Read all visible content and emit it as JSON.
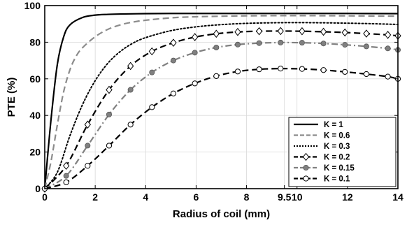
{
  "chart_data": {
    "type": "line",
    "xlabel": "Radius of coil (mm)",
    "ylabel": "PTE (%)",
    "xlim": [
      0,
      14
    ],
    "ylim": [
      0,
      100
    ],
    "xticks": [
      0,
      2,
      4,
      6,
      8,
      9.5,
      10,
      12,
      14
    ],
    "xtick_labels": [
      "0",
      "2",
      "4",
      "6",
      "8",
      "9.5",
      "10",
      "12",
      "14"
    ],
    "yticks": [
      0,
      20,
      40,
      60,
      80,
      100
    ],
    "ytick_labels": [
      "0",
      "20",
      "40",
      "60",
      "80",
      "100"
    ],
    "grid": true,
    "legend_position": "bottom-right",
    "x_markers": [
      0,
      0.85,
      1.7,
      2.55,
      3.4,
      4.25,
      5.1,
      5.95,
      6.8,
      7.65,
      8.5,
      9.35,
      10.2,
      11.05,
      11.9,
      12.75,
      13.6,
      14
    ],
    "series": [
      {
        "name": "K = 1",
        "color": "#000000",
        "dash": "solid",
        "marker": "none",
        "x": [
          0,
          0.25,
          0.5,
          0.75,
          1,
          1.5,
          2,
          2.5,
          3,
          4,
          5,
          6,
          8,
          10,
          12,
          14
        ],
        "y": [
          0,
          38,
          68,
          83,
          89.5,
          93.5,
          94.8,
          95.2,
          95.4,
          95.6,
          95.7,
          95.7,
          95.7,
          95.7,
          95.7,
          95.6
        ]
      },
      {
        "name": "K = 0.6",
        "color": "#8c8c8c",
        "dash": "dash",
        "marker": "none",
        "x": [
          0,
          0.25,
          0.5,
          0.75,
          1,
          1.25,
          1.5,
          2,
          2.5,
          3,
          3.5,
          4,
          5,
          6,
          8,
          10,
          12,
          14
        ],
        "y": [
          0,
          15,
          35,
          53,
          65,
          72.5,
          77,
          83,
          87,
          89.5,
          91,
          92,
          93.3,
          93.9,
          94.4,
          94.5,
          94.4,
          94.2
        ]
      },
      {
        "name": "K = 0.3",
        "color": "#000000",
        "dash": "dot",
        "marker": "none",
        "x": [
          0,
          0.5,
          1,
          1.5,
          2,
          2.5,
          3,
          3.5,
          4,
          5,
          6,
          7,
          8,
          9,
          10,
          11,
          12,
          13,
          14
        ],
        "y": [
          0,
          9,
          29,
          46,
          59,
          68.5,
          75,
          79.5,
          82.5,
          86.3,
          88.4,
          89.6,
          90.3,
          90.6,
          90.7,
          90.6,
          90.4,
          90.1,
          89.7
        ]
      },
      {
        "name": "K = 0.2",
        "color": "#000000",
        "dash": "dash",
        "marker": "diamond",
        "x": [
          0,
          0.85,
          1.7,
          2.55,
          3.4,
          4.25,
          5.1,
          5.95,
          6.8,
          7.65,
          8.5,
          9.35,
          10.2,
          11.05,
          11.9,
          12.75,
          13.6,
          14
        ],
        "y": [
          0,
          12.5,
          35,
          54,
          67,
          75,
          79.7,
          82.8,
          84.6,
          85.6,
          86,
          86.1,
          86,
          85.7,
          85.3,
          84.7,
          84,
          83.5
        ]
      },
      {
        "name": "K = 0.15",
        "color": "#808080",
        "dash": "dashdot",
        "marker": "circle-filled",
        "x": [
          0,
          0.85,
          1.7,
          2.55,
          3.4,
          4.25,
          5.1,
          5.95,
          6.8,
          7.65,
          8.5,
          9.35,
          10.2,
          11.05,
          11.9,
          12.75,
          13.6,
          14
        ],
        "y": [
          0,
          7,
          23.5,
          40.5,
          54,
          63.5,
          70,
          74.3,
          77.1,
          78.7,
          79.5,
          79.8,
          79.7,
          79.3,
          78.6,
          77.7,
          76.6,
          75.8
        ]
      },
      {
        "name": "K = 0.1",
        "color": "#000000",
        "dash": "dash",
        "marker": "circle-open",
        "x": [
          0,
          0.85,
          1.7,
          2.55,
          3.4,
          4.25,
          5.1,
          5.95,
          6.8,
          7.65,
          8.5,
          9.35,
          10.2,
          11.05,
          11.9,
          12.75,
          13.6,
          14
        ],
        "y": [
          0,
          3.5,
          12.5,
          23.5,
          35,
          44.5,
          52,
          57.5,
          61.5,
          64,
          65.2,
          65.6,
          65.4,
          64.8,
          63.8,
          62.6,
          61.2,
          60
        ]
      }
    ]
  }
}
